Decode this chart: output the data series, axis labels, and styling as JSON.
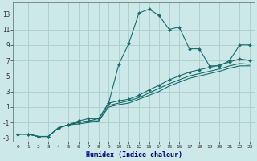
{
  "xlabel": "Humidex (Indice chaleur)",
  "xlim": [
    -0.5,
    23.5
  ],
  "ylim": [
    -3.5,
    14.5
  ],
  "xticks": [
    0,
    1,
    2,
    3,
    4,
    5,
    6,
    7,
    8,
    9,
    10,
    11,
    12,
    13,
    14,
    15,
    16,
    17,
    18,
    19,
    20,
    21,
    22,
    23
  ],
  "yticks": [
    -3,
    -1,
    1,
    3,
    5,
    7,
    9,
    11,
    13
  ],
  "background_color": "#cce8e8",
  "grid_color": "#aacccc",
  "line_color": "#1a6b6b",
  "line1_x": [
    0,
    1,
    2,
    3,
    4,
    5,
    6,
    7,
    8,
    9,
    10,
    11,
    12,
    13,
    14,
    15,
    16,
    17,
    18,
    19,
    20,
    21,
    22,
    23
  ],
  "line1_y": [
    -2.5,
    -2.5,
    -2.8,
    -2.8,
    -1.7,
    -1.3,
    -0.8,
    -0.5,
    -0.5,
    1.5,
    6.5,
    9.2,
    13.1,
    13.6,
    12.8,
    11.0,
    11.3,
    8.5,
    8.5,
    6.3,
    6.3,
    7.0,
    9.0,
    9.0
  ],
  "line2_x": [
    0,
    1,
    2,
    3,
    4,
    5,
    6,
    7,
    8,
    9,
    10,
    11,
    12,
    13,
    14,
    15,
    16,
    17,
    18,
    19,
    20,
    21,
    22,
    23
  ],
  "line2_y": [
    -2.5,
    -2.5,
    -2.8,
    -2.8,
    -1.7,
    -1.3,
    -1.0,
    -0.8,
    -0.5,
    1.5,
    1.8,
    2.0,
    2.5,
    3.2,
    3.8,
    4.5,
    5.0,
    5.5,
    5.8,
    6.1,
    6.4,
    6.8,
    7.2,
    7.0
  ],
  "line3_x": [
    0,
    1,
    2,
    3,
    4,
    5,
    6,
    7,
    8,
    9,
    10,
    11,
    12,
    13,
    14,
    15,
    16,
    17,
    18,
    19,
    20,
    21,
    22,
    23
  ],
  "line3_y": [
    -2.5,
    -2.5,
    -2.8,
    -2.8,
    -1.7,
    -1.3,
    -1.0,
    -0.8,
    -0.8,
    1.2,
    1.5,
    1.8,
    2.2,
    2.8,
    3.4,
    4.0,
    4.5,
    5.0,
    5.3,
    5.6,
    5.9,
    6.3,
    6.6,
    6.5
  ],
  "line4_x": [
    0,
    1,
    2,
    3,
    4,
    5,
    6,
    7,
    8,
    9,
    10,
    11,
    12,
    13,
    14,
    15,
    16,
    17,
    18,
    19,
    20,
    21,
    22,
    23
  ],
  "line4_y": [
    -2.5,
    -2.5,
    -2.8,
    -2.8,
    -1.7,
    -1.3,
    -1.2,
    -1.0,
    -0.8,
    1.0,
    1.3,
    1.5,
    2.0,
    2.5,
    3.0,
    3.7,
    4.2,
    4.7,
    5.0,
    5.3,
    5.6,
    6.0,
    6.3,
    6.3
  ]
}
